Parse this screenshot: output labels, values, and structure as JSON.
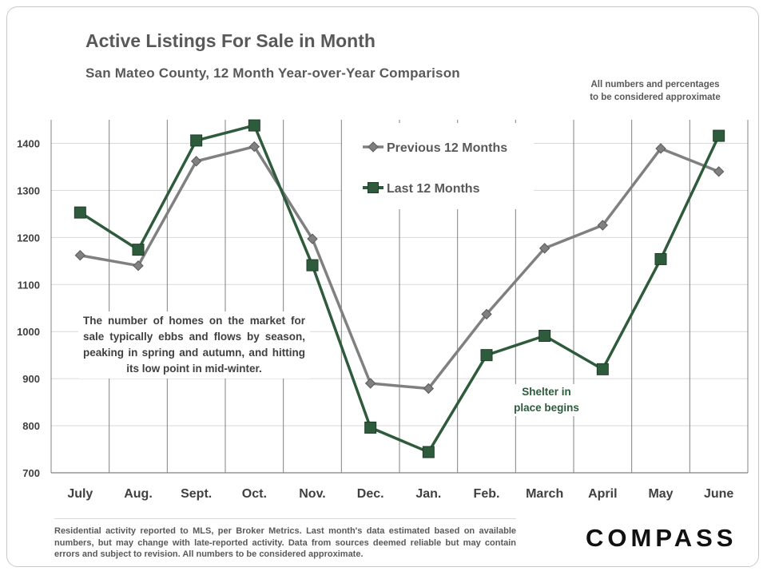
{
  "header": {
    "title": "Active Listings For Sale in Month",
    "subtitle": "San Mateo County, 12 Month Year-over-Year  Comparison",
    "disclaimer_line1": "All numbers and percentages",
    "disclaimer_line2": "to be considered approximate"
  },
  "annotations": {
    "seasonal_note": "The number of homes on the market for sale typically ebbs and flows by season, peaking in spring and autumn, and hitting its low point in mid-winter.",
    "shelter_line1": "Shelter in",
    "shelter_line2": "place  begins"
  },
  "footer": {
    "note": "Residential activity reported to MLS, per Broker Metrics. Last month's data estimated based on available numbers, but may change with late-reported activity. Data from sources deemed reliable but may contain errors and subject to revision. All numbers to be considered approximate.",
    "logo": "COMPASS"
  },
  "colors": {
    "previous": "#808080",
    "last": "#2e5b3c",
    "grid": "#d9d9d9",
    "divider": "#808080"
  },
  "chart_data": {
    "type": "line",
    "categories": [
      "July",
      "Aug.",
      "Sept.",
      "Oct.",
      "Nov.",
      "Dec.",
      "Jan.",
      "Feb.",
      "March",
      "April",
      "May",
      "June"
    ],
    "ylim": [
      700,
      1450
    ],
    "yticks": [
      700,
      800,
      900,
      1000,
      1100,
      1200,
      1300,
      1400
    ],
    "grid": true,
    "legend_position": "top-center",
    "series": [
      {
        "name": "Previous 12 Months",
        "marker": "diamond",
        "values": [
          1162,
          1140,
          1362,
          1393,
          1197,
          890,
          879,
          1037,
          1177,
          1226,
          1389,
          1340
        ]
      },
      {
        "name": "Last 12 Months",
        "marker": "square",
        "values": [
          1253,
          1174,
          1406,
          1438,
          1141,
          796,
          744,
          950,
          991,
          920,
          1154,
          1416
        ]
      }
    ]
  }
}
